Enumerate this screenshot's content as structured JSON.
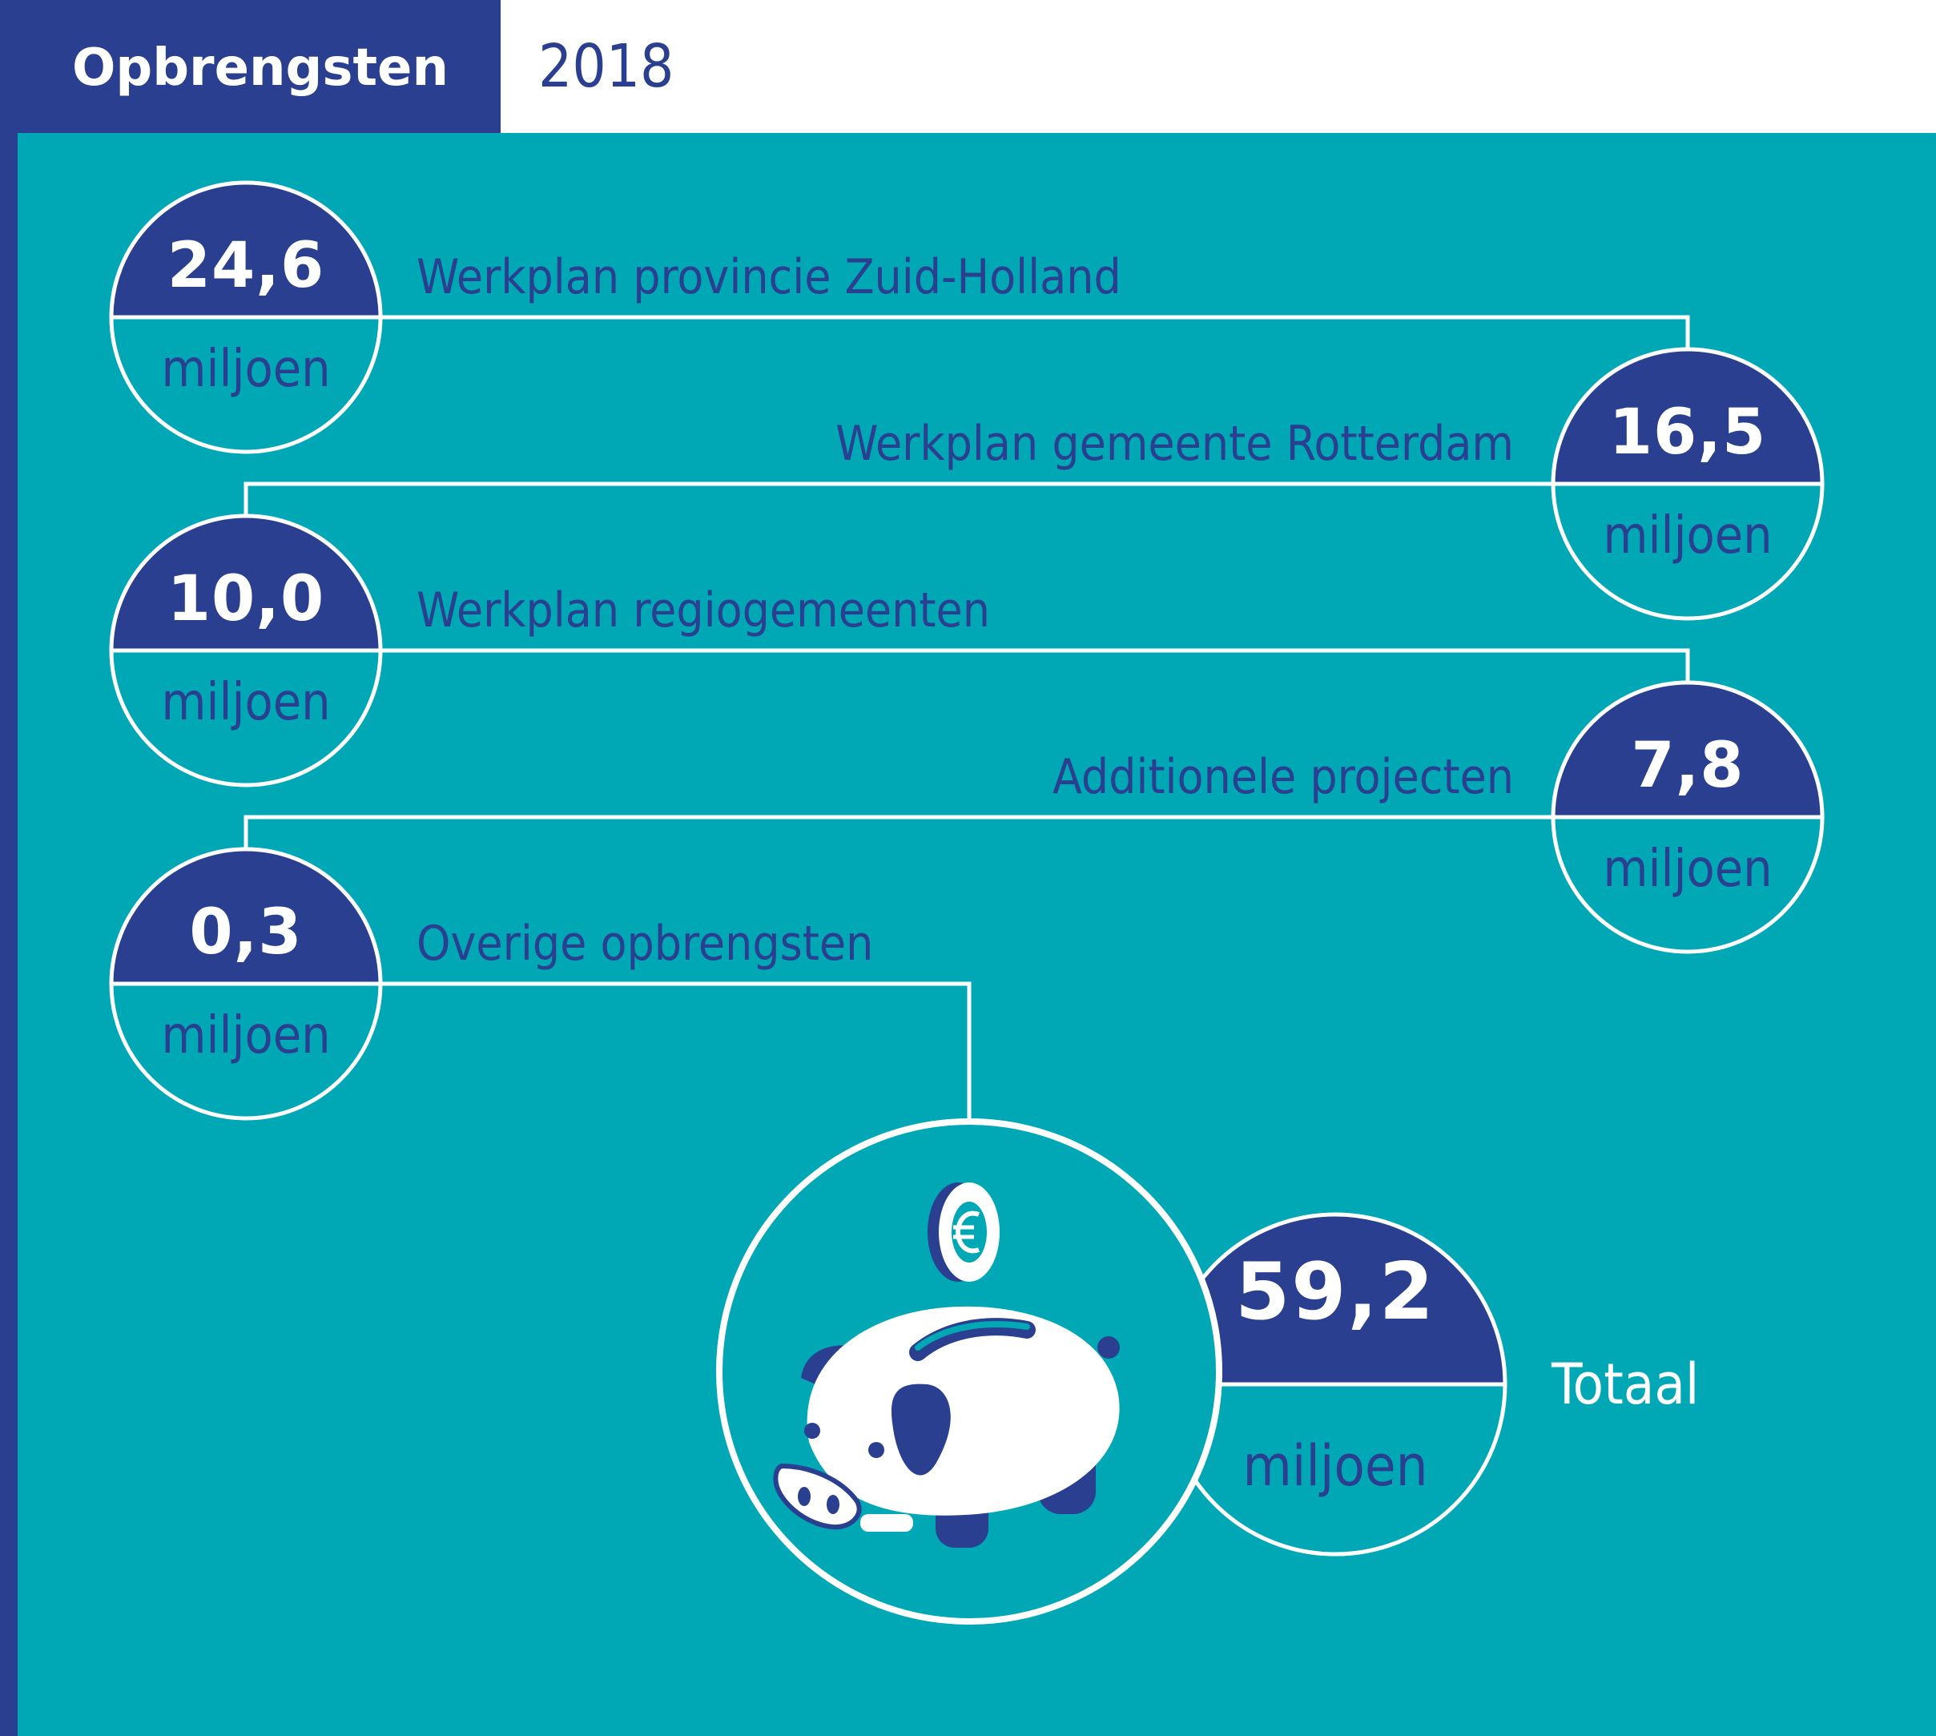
{
  "header": {
    "title": "Opbrengsten",
    "year": "2018"
  },
  "colors": {
    "navy": "#2a3f8f",
    "teal": "#00a7b5",
    "white": "#ffffff"
  },
  "items": [
    {
      "value": "24,6",
      "unit": "miljoen",
      "label": "Werkplan provincie Zuid-Holland"
    },
    {
      "value": "16,5",
      "unit": "miljoen",
      "label": "Werkplan gemeente Rotterdam"
    },
    {
      "value": "10,0",
      "unit": "miljoen",
      "label": "Werkplan regiogemeenten"
    },
    {
      "value": "7,8",
      "unit": "miljoen",
      "label": "Additionele projecten"
    },
    {
      "value": "0,3",
      "unit": "miljoen",
      "label": "Overige opbrengsten"
    }
  ],
  "total": {
    "value": "59,2",
    "unit": "miljoen",
    "label": "Totaal"
  },
  "icons": [
    "piggy-bank-icon",
    "euro-coin-icon"
  ]
}
